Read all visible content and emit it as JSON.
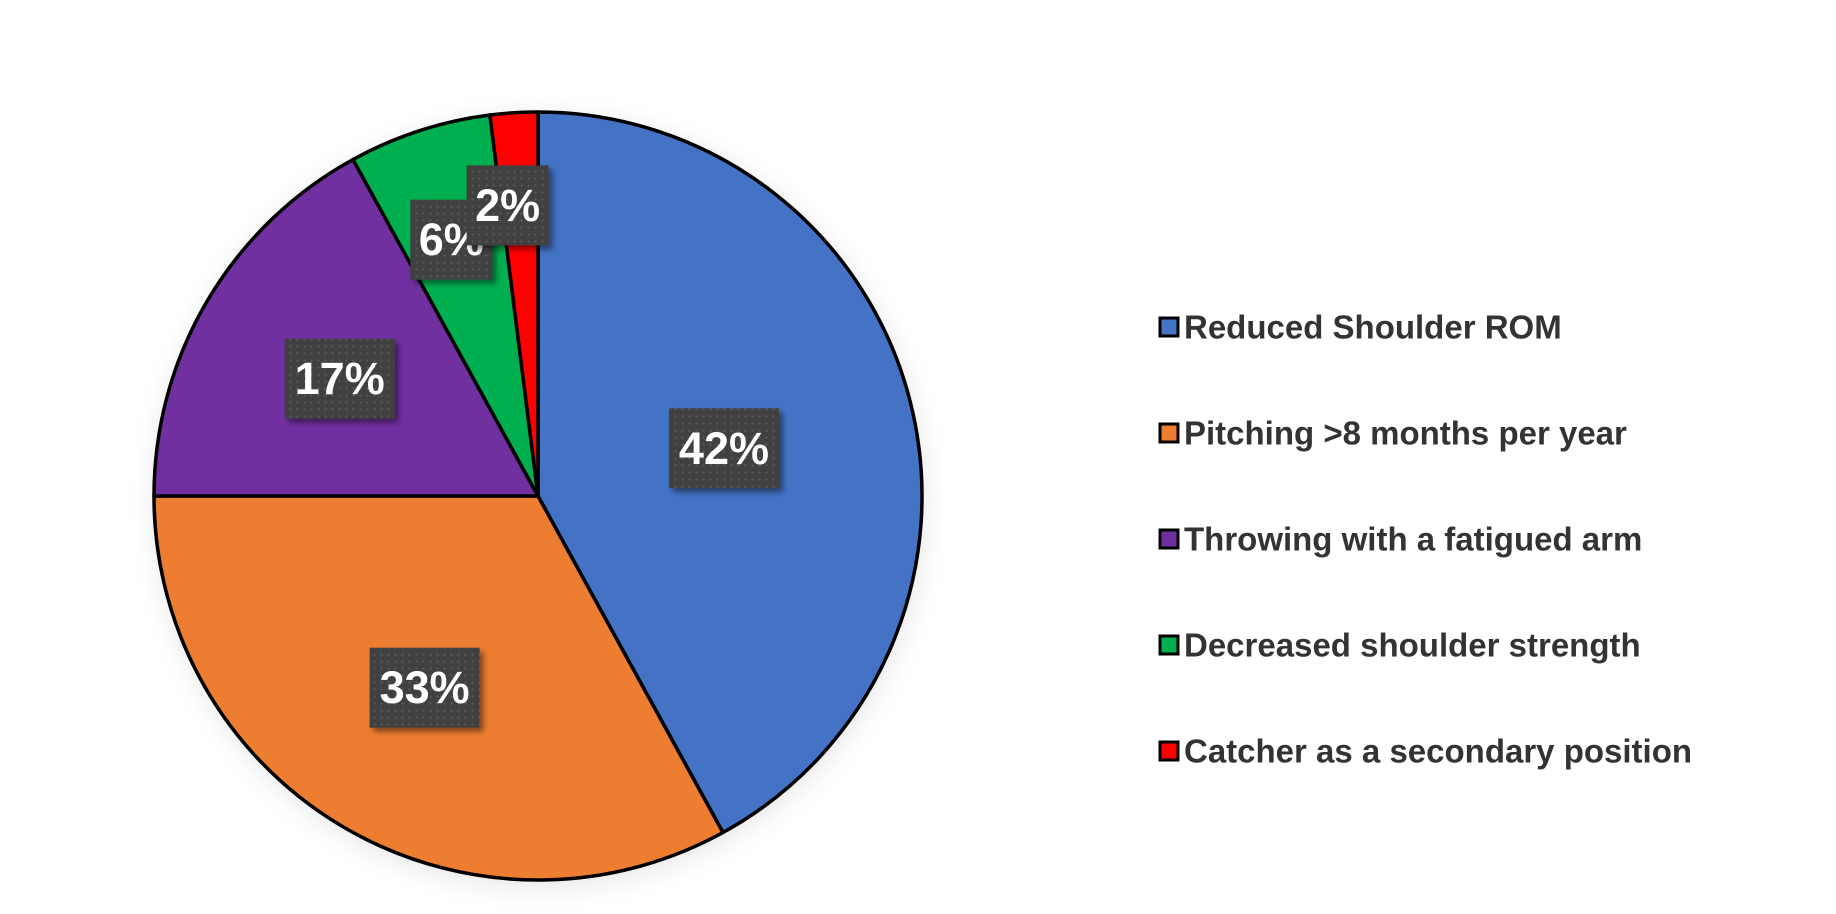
{
  "chart_data": {
    "type": "pie",
    "start_angle_deg": 0,
    "direction": "clockwise",
    "legend_position": "right",
    "data_labels": "percent",
    "slices": [
      {
        "name": "Reduced Shoulder ROM",
        "value": 42,
        "label": "42%",
        "color": "#4472C4"
      },
      {
        "name": "Pitching >8 months per year",
        "value": 33,
        "label": "33%",
        "color": "#ED7D31"
      },
      {
        "name": "Throwing with a fatigued arm",
        "value": 17,
        "label": "17%",
        "color": "#7030A0"
      },
      {
        "name": "Decreased shoulder strength",
        "value": 6,
        "label": "6%",
        "color": "#00B050"
      },
      {
        "name": "Catcher as a secondary position",
        "value": 2,
        "label": "2%",
        "color": "#FF0000"
      }
    ],
    "label_box_color": "#404040",
    "border_color": "#000000"
  }
}
